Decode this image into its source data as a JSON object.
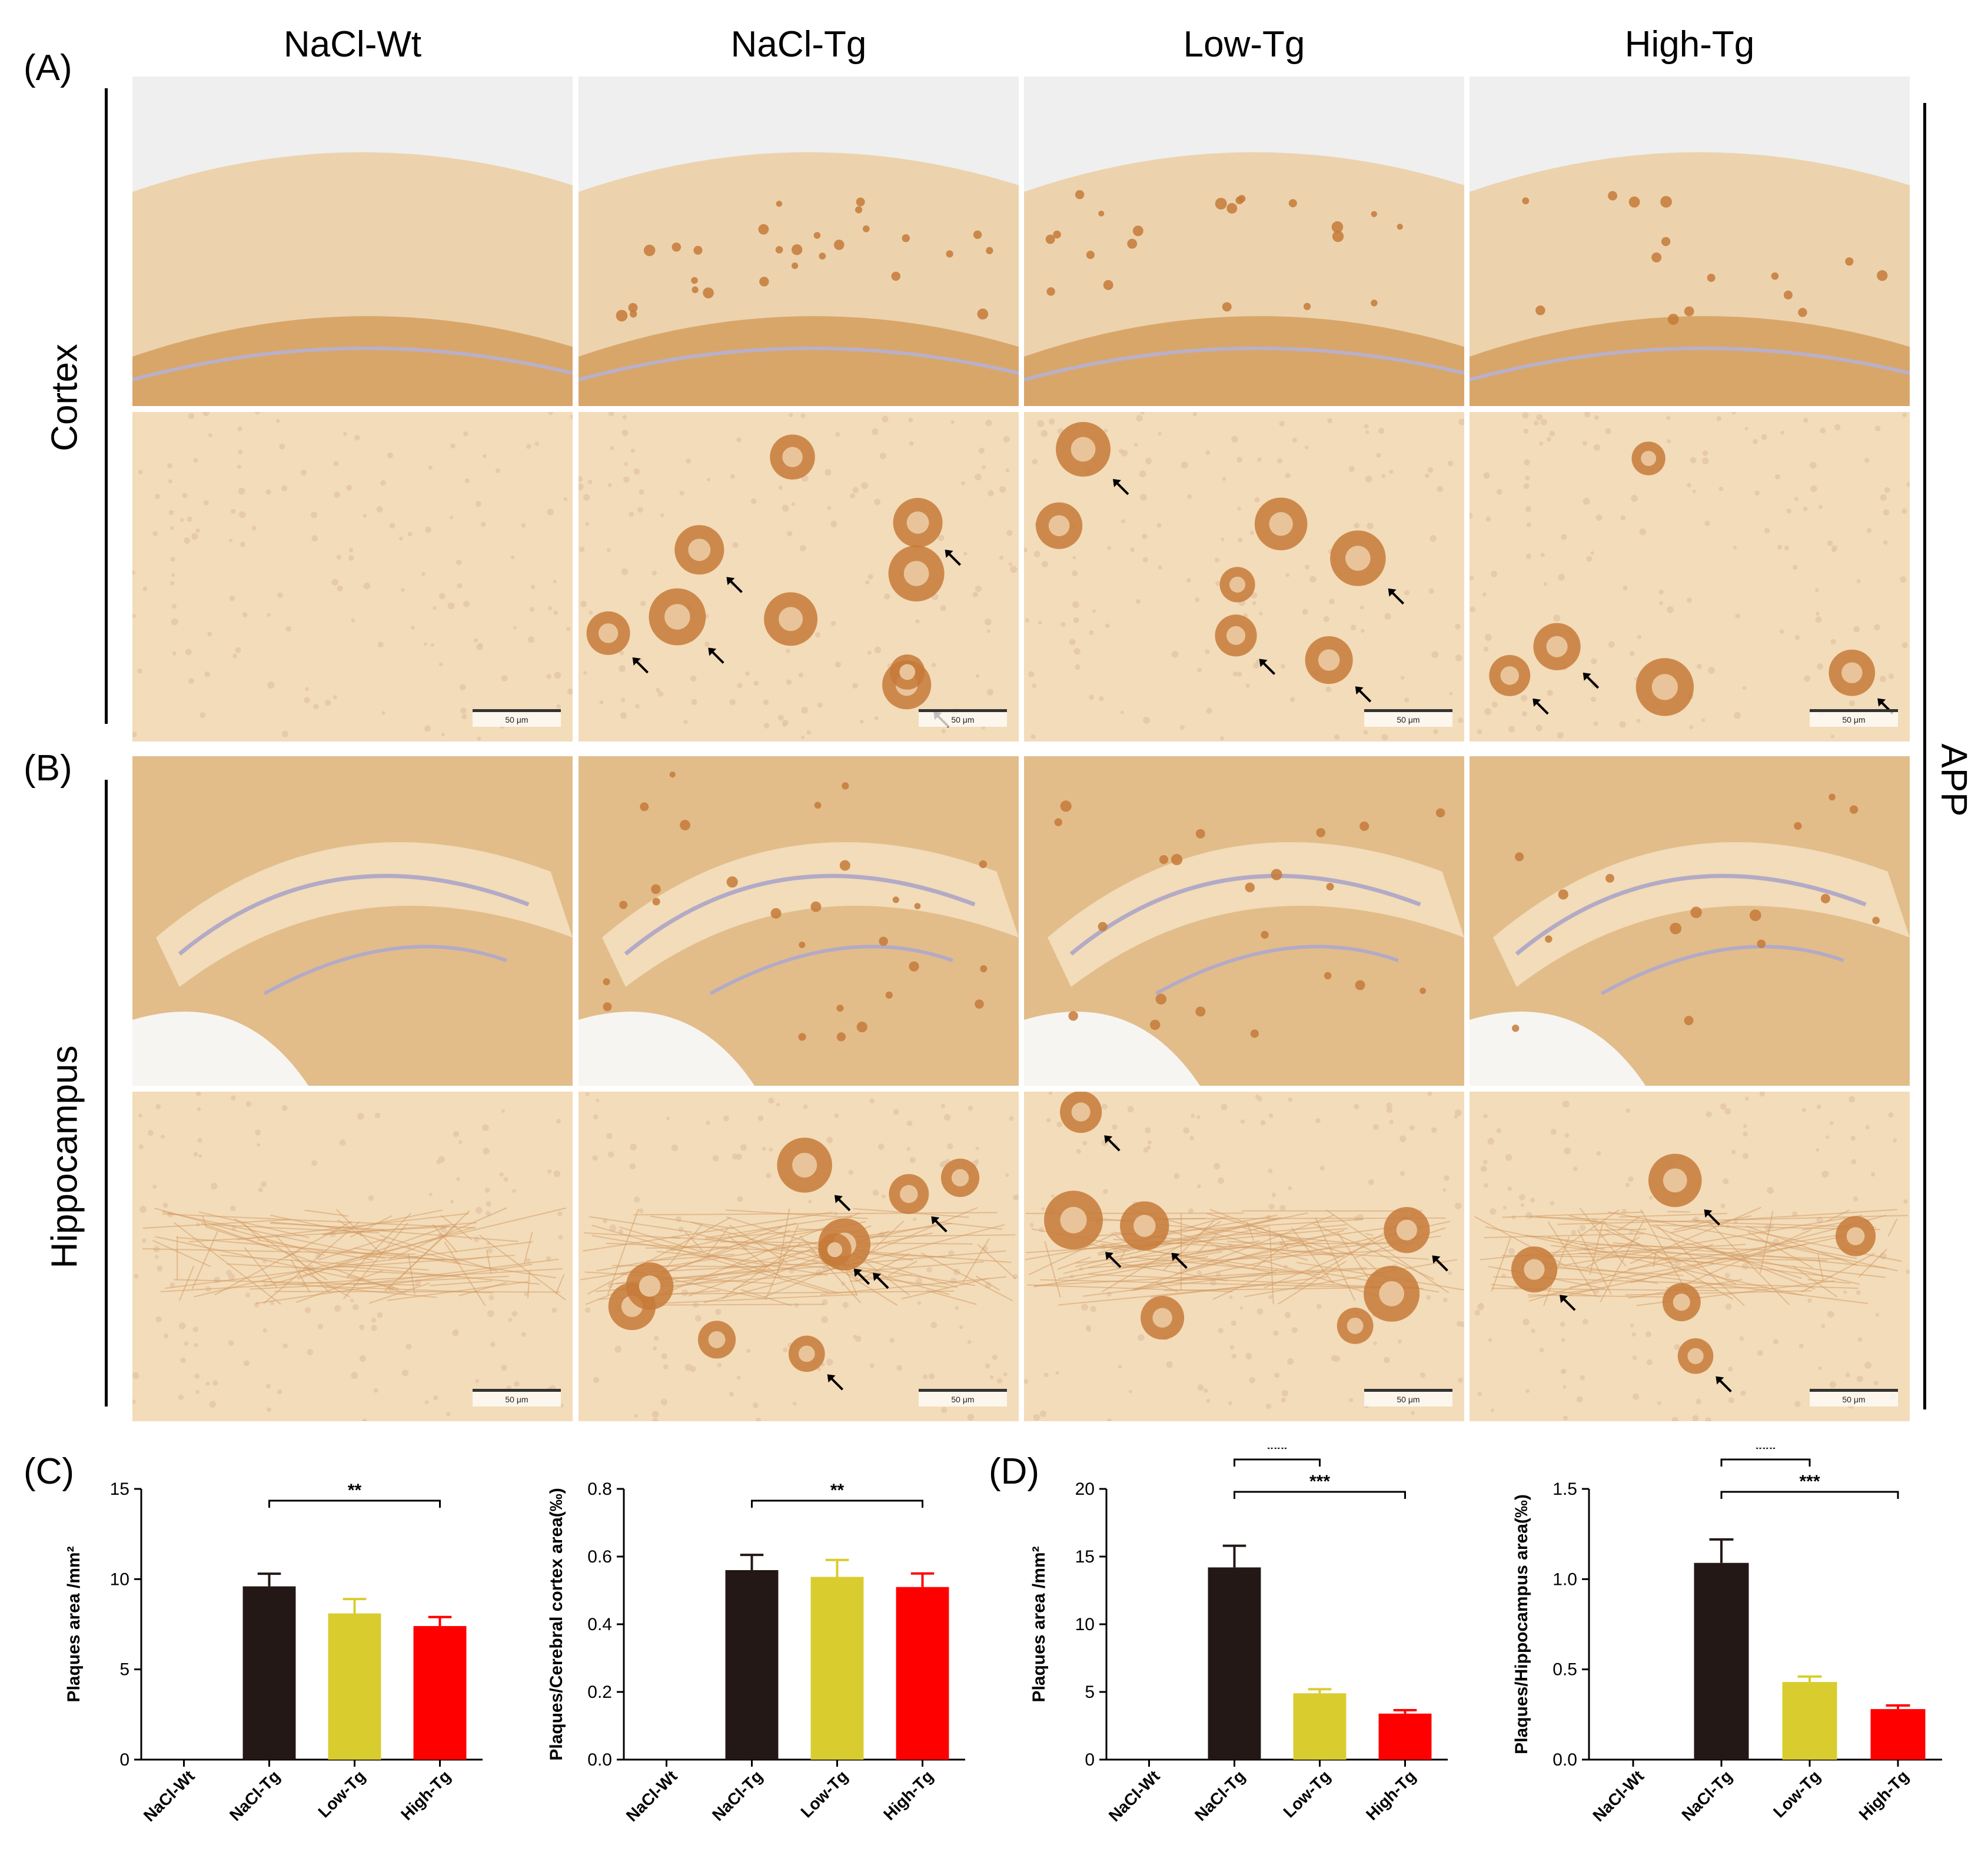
{
  "figure": {
    "column_titles": [
      "NaCl-Wt",
      "NaCl-Tg",
      "Low-Tg",
      "High-Tg"
    ],
    "panel_labels": {
      "a": "(A)",
      "b": "(B)",
      "c": "(C)",
      "d": "(D)"
    },
    "row_labels": {
      "cortex": "Cortex",
      "hippocampus": "Hippocampus"
    },
    "stain_label": "APP",
    "scale_bar_label": "50 μm"
  },
  "colors": {
    "NaCl-Wt": "#231815",
    "NaCl-Tg": "#231815",
    "Low-Tg": "#d9cc2f",
    "High-Tg": "#ff0000",
    "tissue_light": "#f3dcb9",
    "tissue_dark": "#d9a66a",
    "plaque": "#b8621f"
  },
  "chart_data": [
    {
      "type": "bar",
      "panel": "(C)",
      "categories": [
        "NaCl-Wt",
        "NaCl-Tg",
        "Low-Tg",
        "High-Tg"
      ],
      "values": [
        0,
        9.6,
        8.1,
        7.4
      ],
      "errors": [
        0,
        0.7,
        0.8,
        0.5
      ],
      "ylabel": "Plaques area /mm²",
      "ylim": [
        0,
        15
      ],
      "yticks": [
        0,
        5,
        10,
        15
      ],
      "significance": [
        {
          "from": "NaCl-Tg",
          "to": "High-Tg",
          "label": "**"
        }
      ]
    },
    {
      "type": "bar",
      "panel": "",
      "categories": [
        "NaCl-Wt",
        "NaCl-Tg",
        "Low-Tg",
        "High-Tg"
      ],
      "values": [
        0,
        0.56,
        0.54,
        0.51
      ],
      "errors": [
        0,
        0.045,
        0.05,
        0.04
      ],
      "ylabel": "Plaques/Cerebral cortex area(‰)",
      "ylim": [
        0,
        0.8
      ],
      "yticks": [
        0.0,
        0.2,
        0.4,
        0.6,
        0.8
      ],
      "significance": [
        {
          "from": "NaCl-Tg",
          "to": "High-Tg",
          "label": "**"
        }
      ]
    },
    {
      "type": "bar",
      "panel": "(D)",
      "categories": [
        "NaCl-Wt",
        "NaCl-Tg",
        "Low-Tg",
        "High-Tg"
      ],
      "values": [
        0,
        14.2,
        4.9,
        3.4
      ],
      "errors": [
        0,
        1.6,
        0.3,
        0.25
      ],
      "ylabel": "Plaques area /mm²",
      "ylim": [
        0,
        20
      ],
      "yticks": [
        0,
        5,
        10,
        15,
        20
      ],
      "significance": [
        {
          "from": "NaCl-Tg",
          "to": "Low-Tg",
          "label": "***"
        },
        {
          "from": "NaCl-Tg",
          "to": "High-Tg",
          "label": "***"
        }
      ]
    },
    {
      "type": "bar",
      "panel": "",
      "categories": [
        "NaCl-Wt",
        "NaCl-Tg",
        "Low-Tg",
        "High-Tg"
      ],
      "values": [
        0,
        1.09,
        0.43,
        0.28
      ],
      "errors": [
        0,
        0.13,
        0.03,
        0.02
      ],
      "ylabel": "Plaques/Hippocampus area(‰)",
      "ylim": [
        0,
        1.5
      ],
      "yticks": [
        0.0,
        0.5,
        1.0,
        1.5
      ],
      "significance": [
        {
          "from": "NaCl-Tg",
          "to": "Low-Tg",
          "label": "***"
        },
        {
          "from": "NaCl-Tg",
          "to": "High-Tg",
          "label": "***"
        }
      ]
    }
  ]
}
